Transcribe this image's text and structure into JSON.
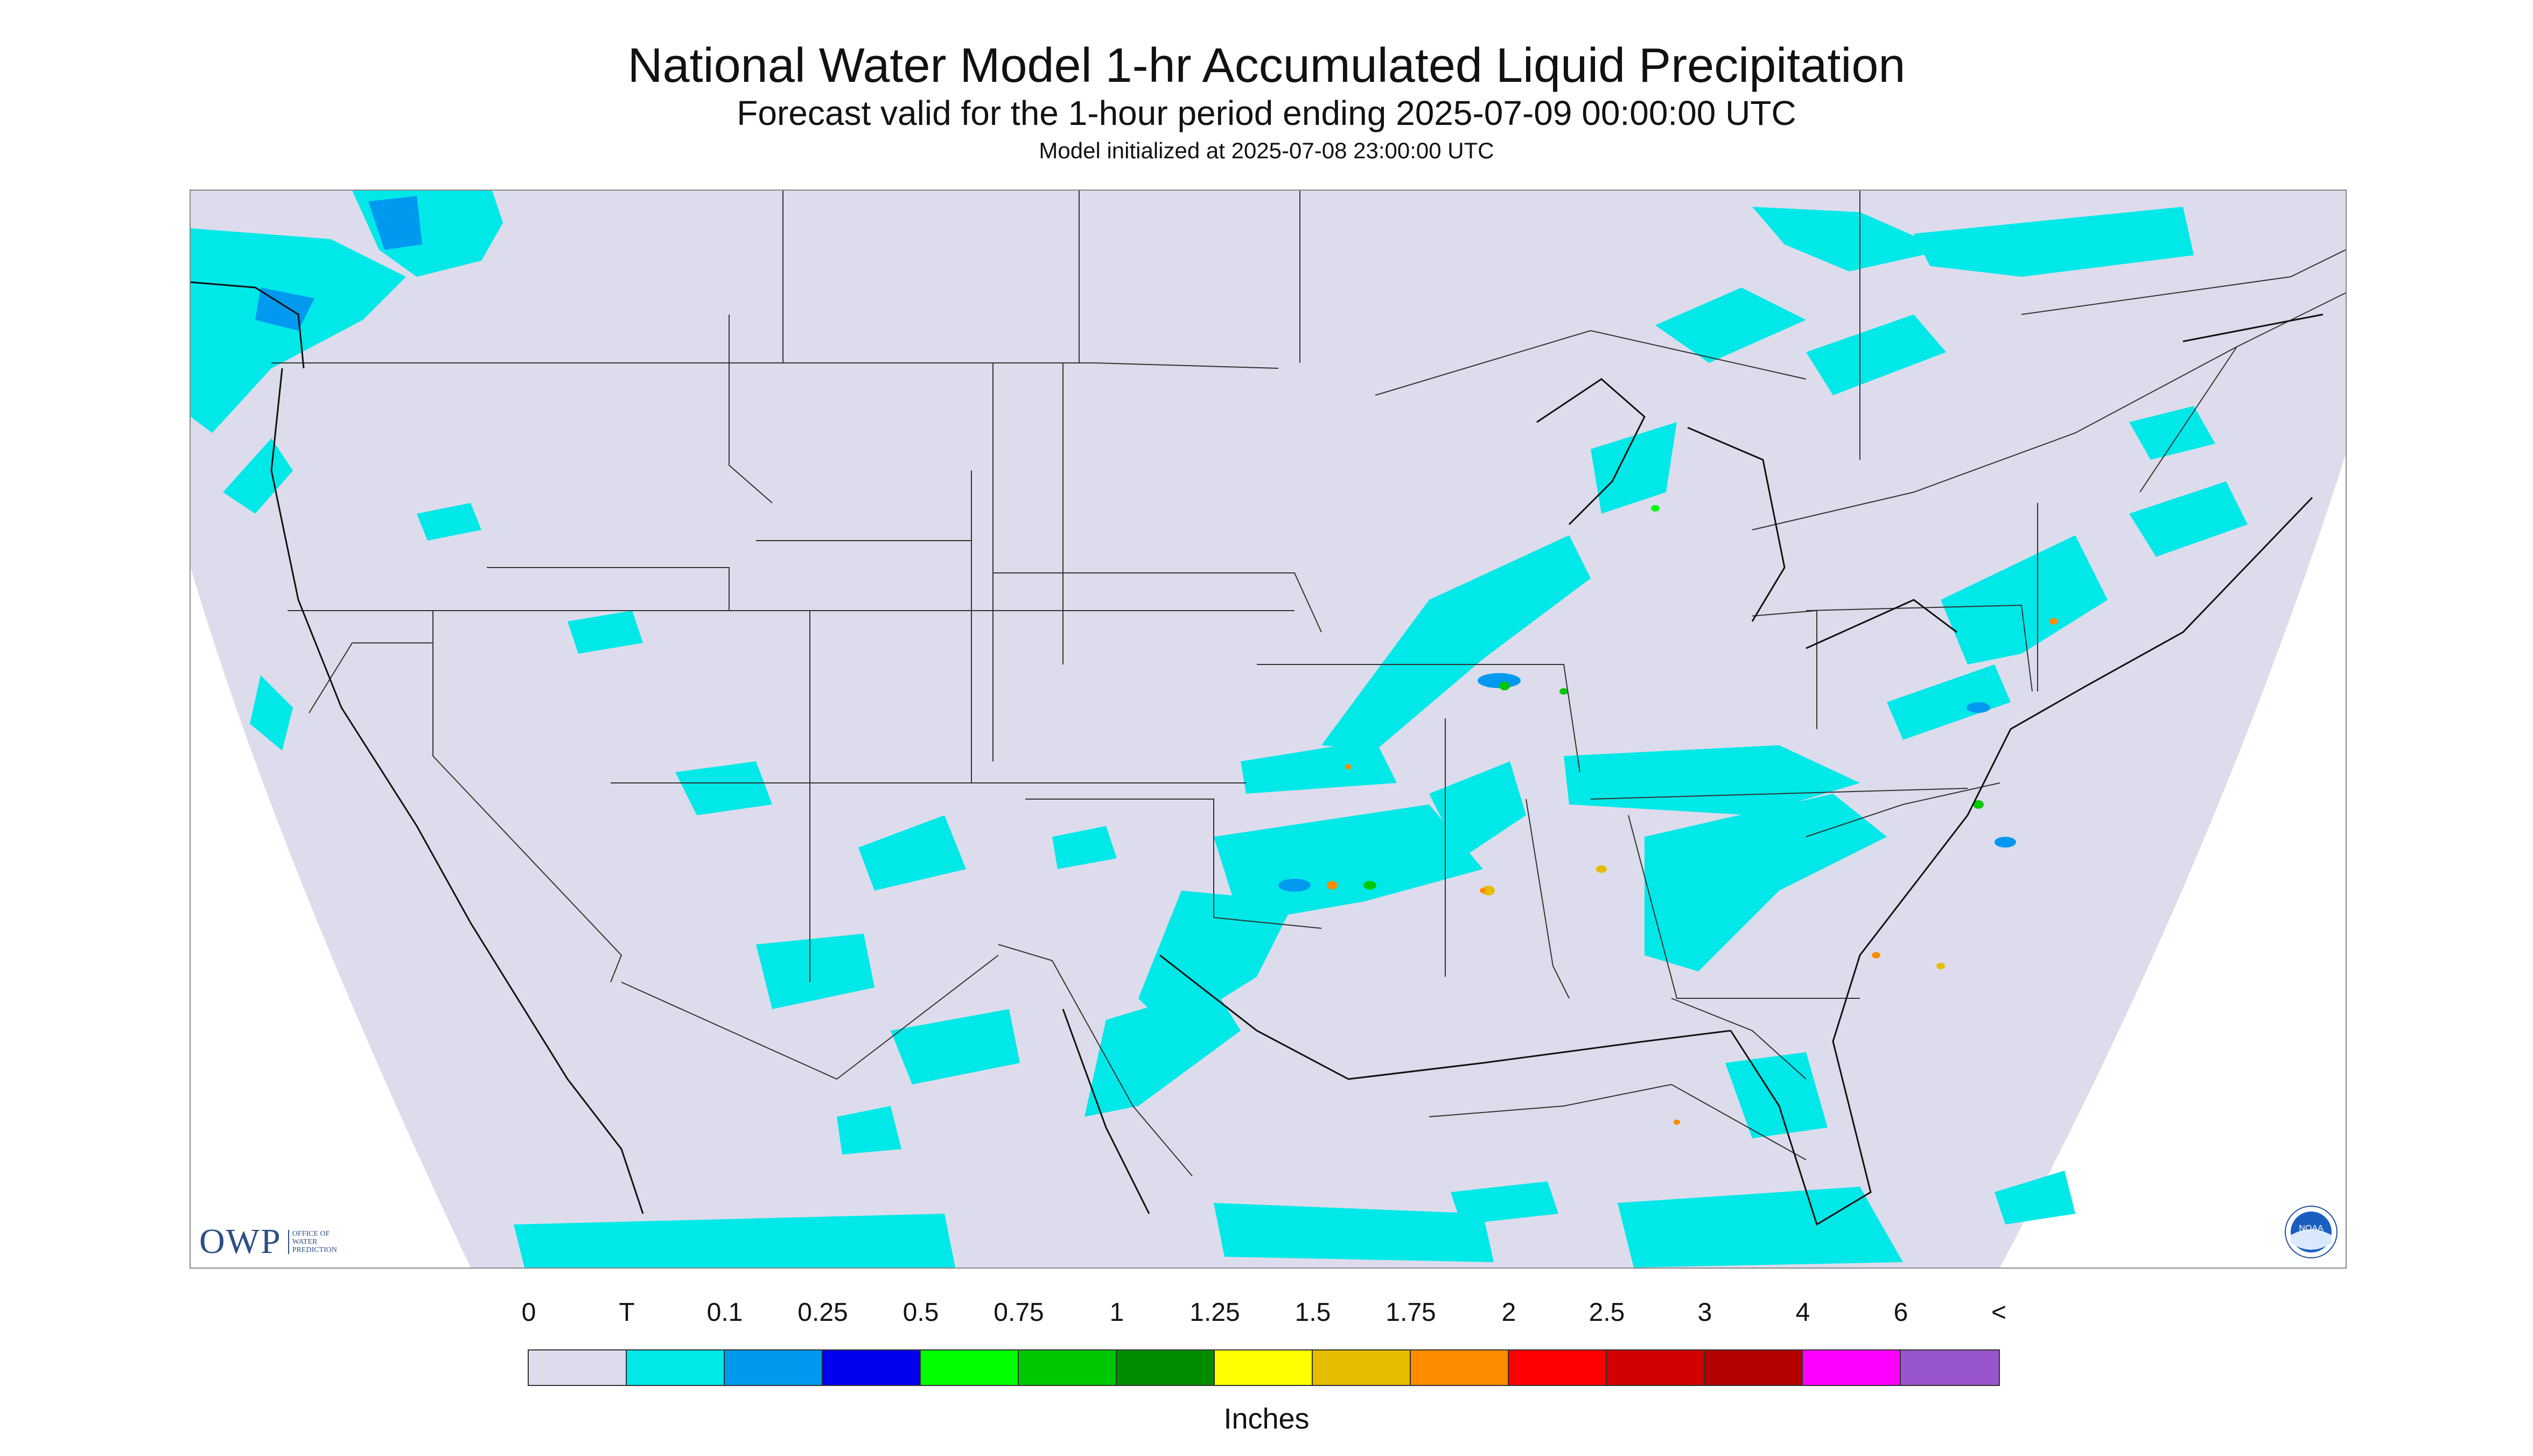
{
  "header": {
    "title": "National Water Model 1-hr Accumulated Liquid Precipitation",
    "subtitle": "Forecast valid for the 1-hour period ending 2025-07-09 00:00:00 UTC",
    "init": "Model initialized at 2025-07-08 23:00:00 UTC"
  },
  "map": {
    "background_color": "#dcdcec",
    "outside_color": "#ffffff",
    "boundary_color": "#333333"
  },
  "logos": {
    "owp_text": "OWP",
    "owp_sub": "OFFICE OF\nWATER\nPREDICTION",
    "noaa_text": "NOAA"
  },
  "legend": {
    "labels": [
      "0",
      "T",
      "0.1",
      "0.25",
      "0.5",
      "0.75",
      "1",
      "1.25",
      "1.5",
      "1.75",
      "2",
      "2.5",
      "3",
      "4",
      "6",
      "<"
    ],
    "colors": [
      "#dcdcec",
      "#00e8e8",
      "#0099f0",
      "#0000f0",
      "#00ff00",
      "#00c800",
      "#008c00",
      "#ffff00",
      "#e6bc00",
      "#ff8c00",
      "#ff0000",
      "#d20000",
      "#b40000",
      "#ff00ff",
      "#9955cc"
    ],
    "units": "Inches"
  }
}
